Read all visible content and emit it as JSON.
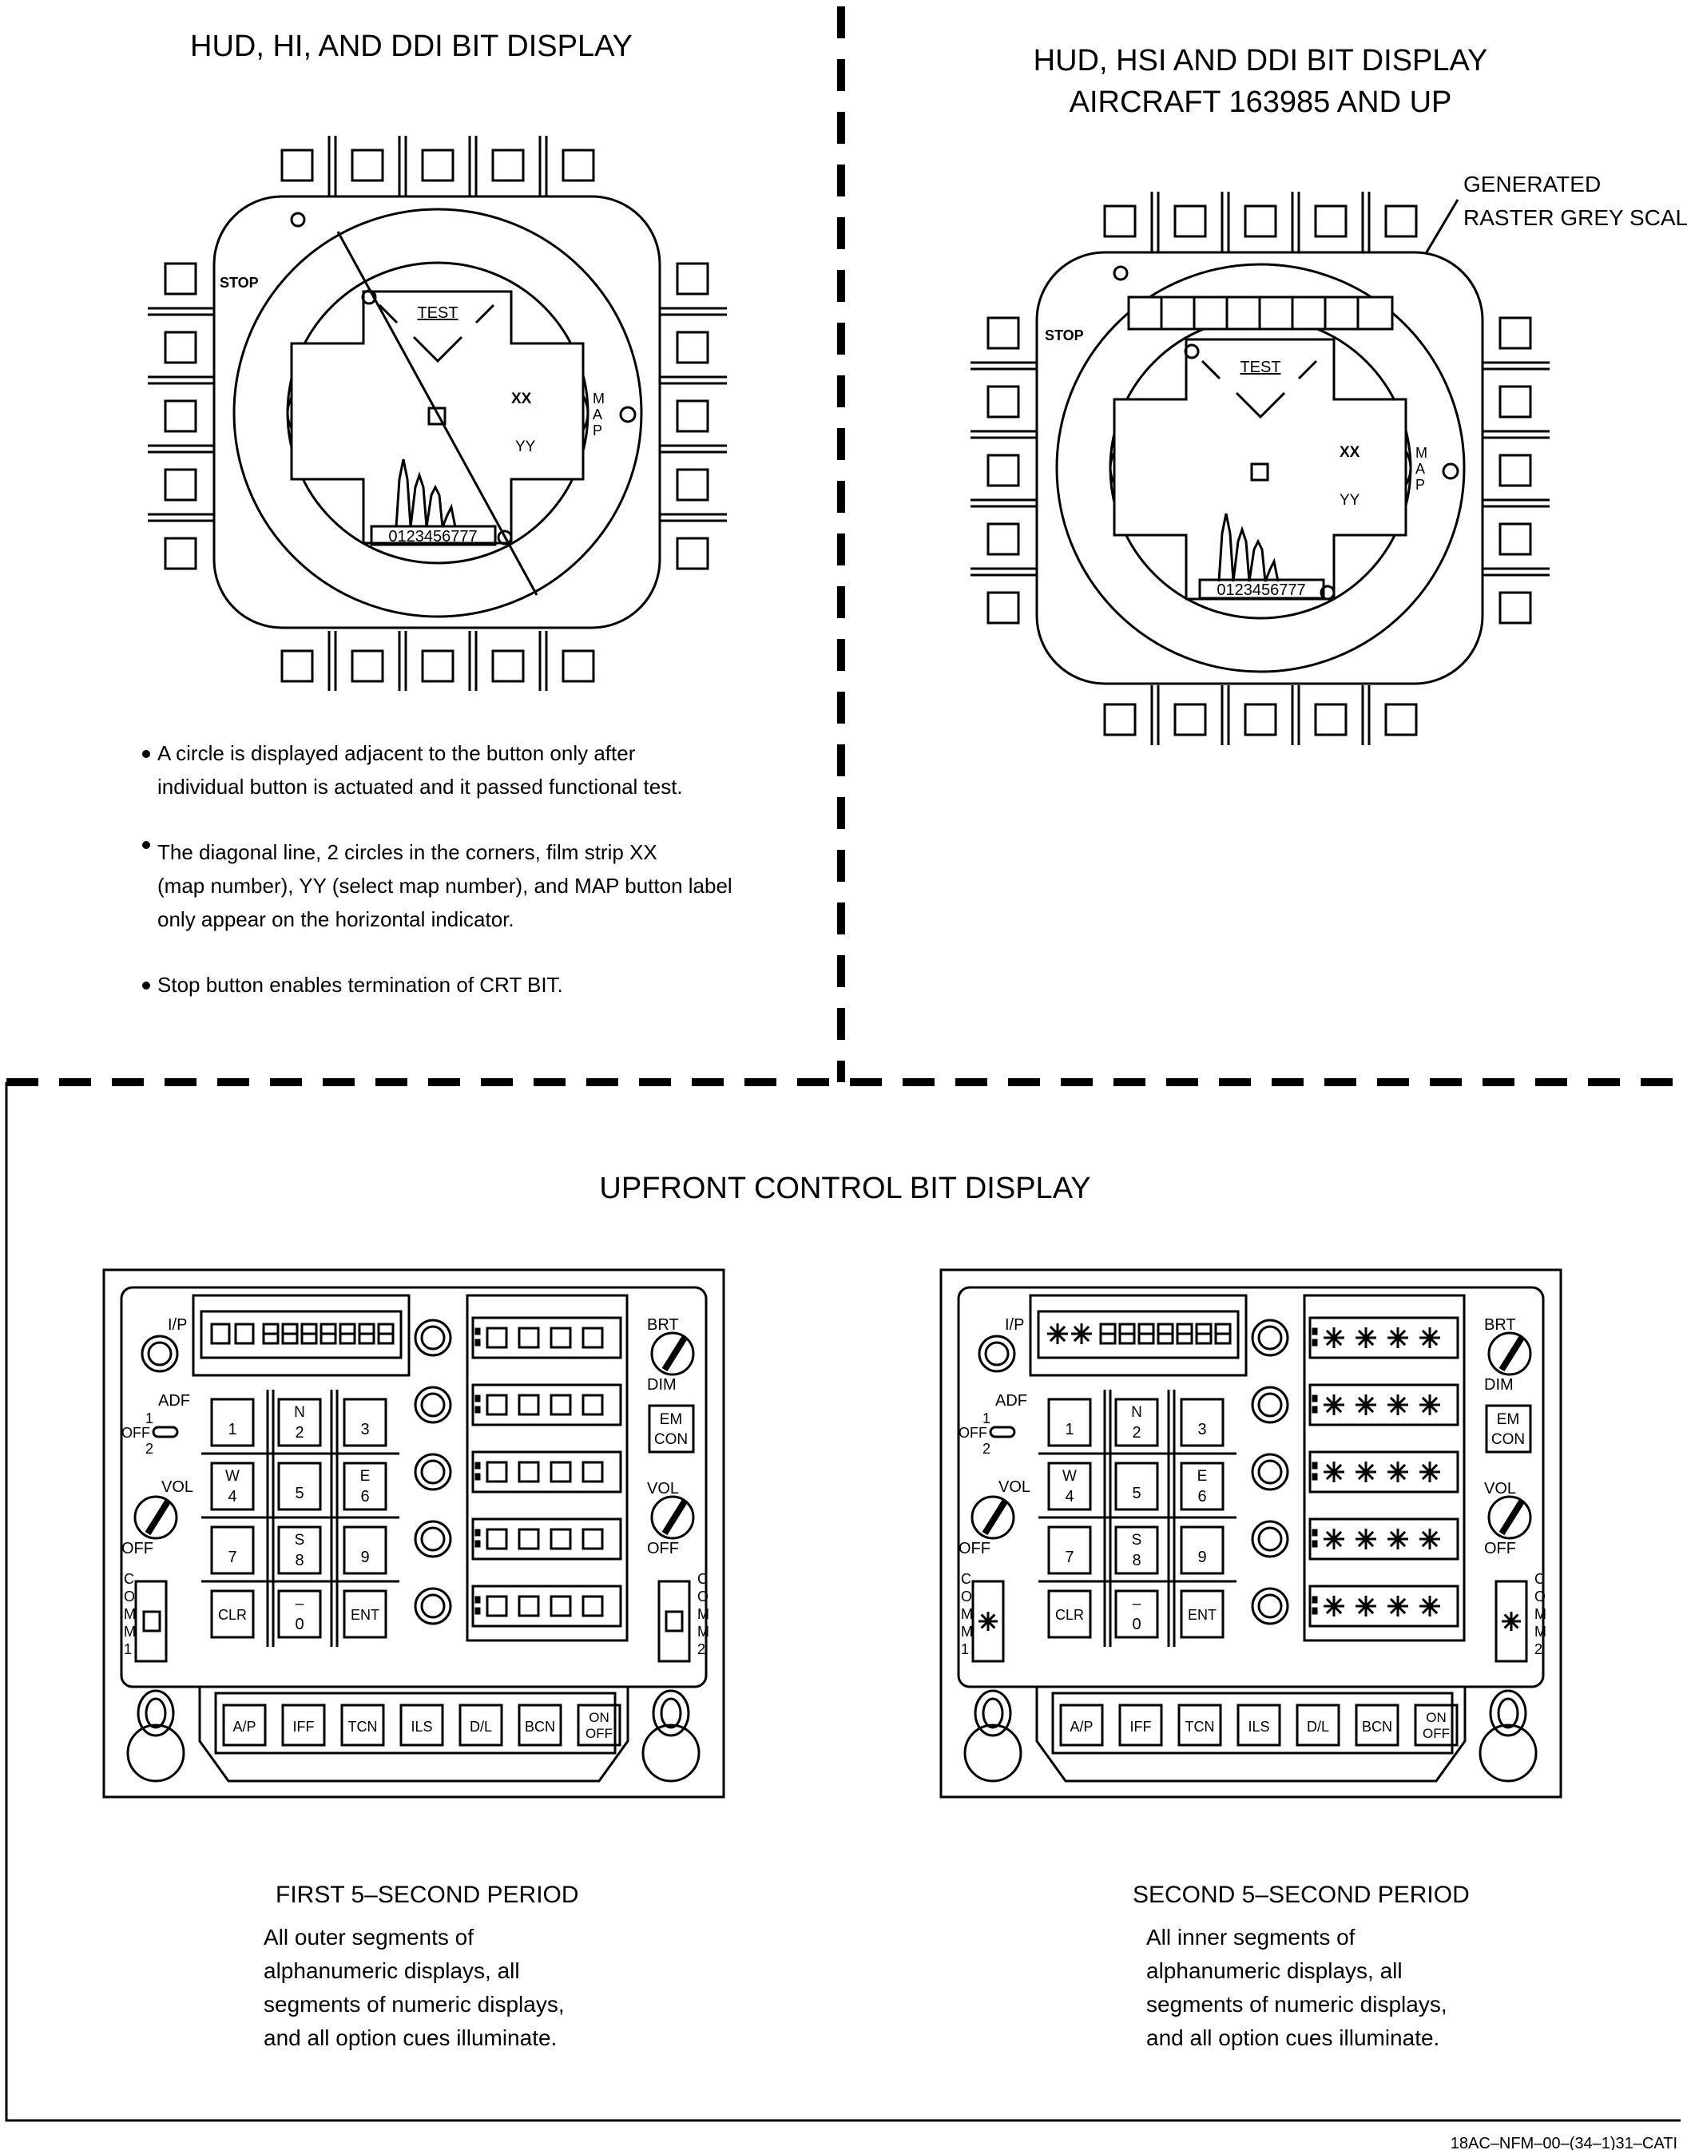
{
  "top_left": {
    "title": "HUD, HI, AND DDI BIT DISPLAY",
    "stop_label": "STOP",
    "test_label": "TEST",
    "xx_label": "XX",
    "yy_label": "YY",
    "map_label": "MAP",
    "film_strip": "0123456777",
    "notes": [
      {
        "line1": "A circle is displayed adjacent to the button only after",
        "line2": "individual button is actuated and it passed functional test.",
        "line3": ""
      },
      {
        "line1": "The diagonal line, 2 circles in the corners, film strip XX",
        "line2": "(map number), YY (select map number), and MAP button label",
        "line3": "only appear on the horizontal indicator."
      },
      {
        "line1": "Stop button enables termination of CRT BIT.",
        "line2": "",
        "line3": ""
      }
    ]
  },
  "top_right": {
    "title_line1": "HUD, HSI AND DDI BIT DISPLAY",
    "title_line2": "AIRCRAFT 163985 AND UP",
    "callout_line1": "GENERATED",
    "callout_line2": "RASTER GREY SCALE",
    "stop_label": "STOP",
    "test_label": "TEST",
    "xx_label": "XX",
    "yy_label": "YY",
    "map_label": "MAP",
    "film_strip": "0123456777"
  },
  "bottom": {
    "title": "UPFRONT CONTROL BIT DISPLAY",
    "panel_labels": {
      "ip": "I/P",
      "adf": "ADF",
      "adf_1": "1",
      "adf_off": "OFF",
      "adf_2": "2",
      "vol": "VOL",
      "off": "OFF",
      "brt": "BRT",
      "dim": "DIM",
      "em": "EM",
      "con": "CON",
      "comm1": "COMM1",
      "comm2": "COMM2",
      "clr": "CLR",
      "ent": "ENT"
    },
    "keypad": [
      {
        "top": "",
        "bottom": "1"
      },
      {
        "top": "N",
        "bottom": "2"
      },
      {
        "top": "",
        "bottom": "3"
      },
      {
        "top": "W",
        "bottom": "4"
      },
      {
        "top": "",
        "bottom": "5"
      },
      {
        "top": "E",
        "bottom": "6"
      },
      {
        "top": "",
        "bottom": "7"
      },
      {
        "top": "S",
        "bottom": "8"
      },
      {
        "top": "",
        "bottom": "9"
      },
      {
        "top": "CLR",
        "bottom": ""
      },
      {
        "top": "–",
        "bottom": "0"
      },
      {
        "top": "ENT",
        "bottom": ""
      }
    ],
    "function_buttons": [
      "A/P",
      "IFF",
      "TCN",
      "ILS",
      "D/L",
      "BCN",
      "ON OFF"
    ],
    "first_period": {
      "heading": "FIRST 5–SECOND PERIOD",
      "lines": [
        "All outer segments of",
        "alphanumeric displays, all",
        "segments of numeric displays,",
        "and all option cues illuminate."
      ]
    },
    "second_period": {
      "heading": "SECOND 5–SECOND PERIOD",
      "lines": [
        "All inner segments of",
        "alphanumeric displays, all",
        "segments of numeric displays,",
        "and all option cues illuminate."
      ]
    }
  },
  "figure_id": "18AC–NFM–00–(34–1)31–CATI"
}
